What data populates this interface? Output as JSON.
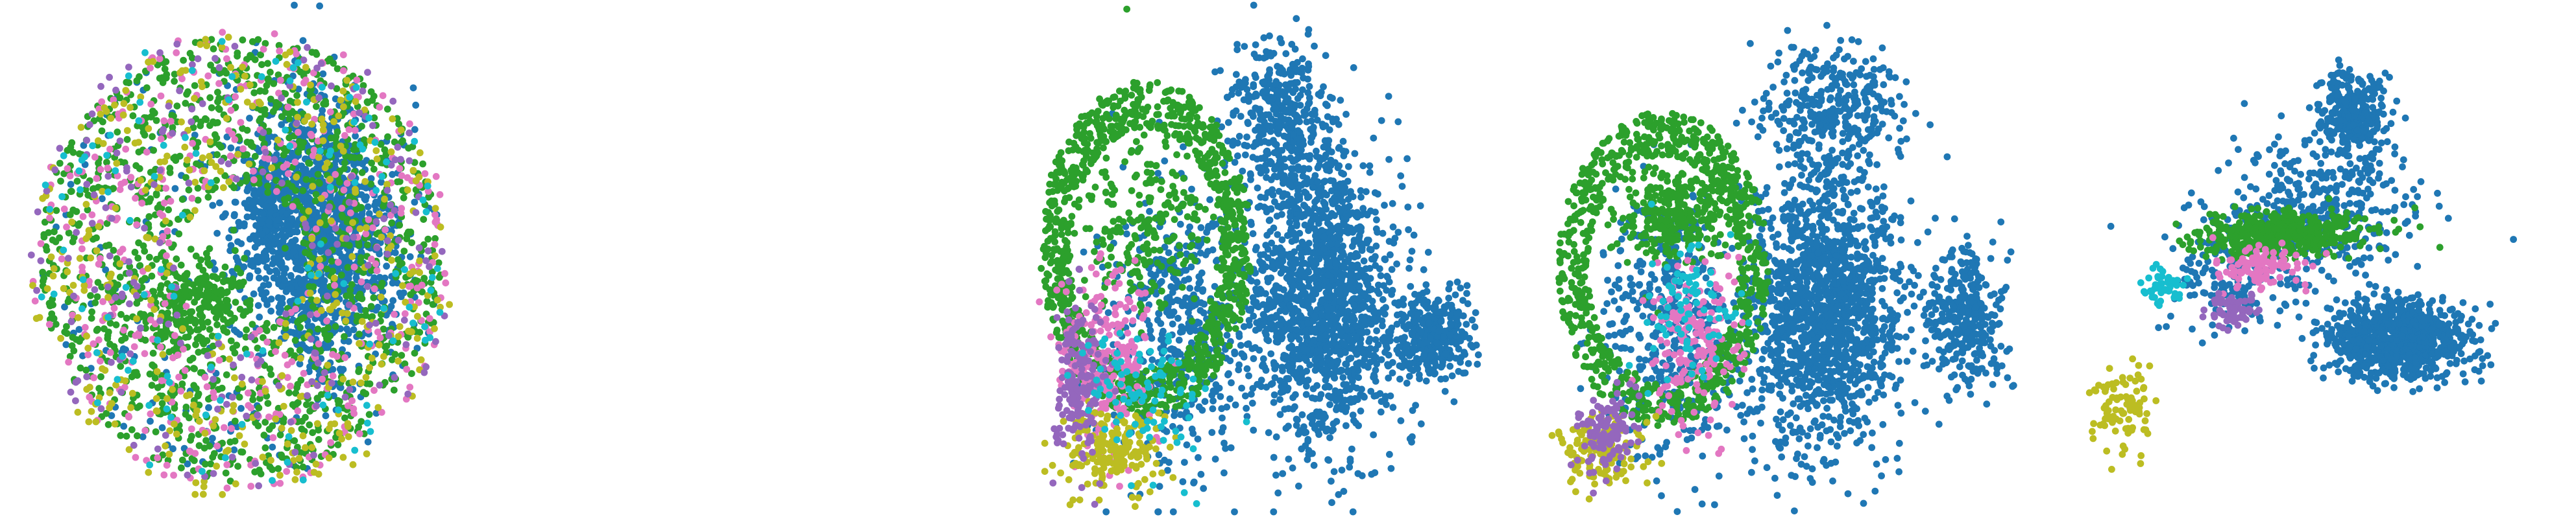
{
  "chart_data": [
    {
      "type": "scatter",
      "title": "",
      "xlabel": "",
      "ylabel": "",
      "axes": "hidden",
      "grid": false,
      "legend": "none",
      "series": [
        {
          "color": "#1f77b4",
          "clusters": [
            [
              0.62,
              0.45,
              0.14,
              0.22,
              1300,
              "gauss"
            ],
            [
              0.52,
              0.38,
              0.04,
              0.09,
              130,
              "gauss"
            ],
            [
              0.47,
              0.5,
              0.4,
              0.44,
              160,
              "ring"
            ]
          ]
        },
        {
          "color": "#2ca02c",
          "clusters": [
            [
              0.47,
              0.5,
              0.4,
              0.44,
              1300,
              "ring"
            ],
            [
              0.4,
              0.58,
              0.09,
              0.08,
              220,
              "gauss"
            ]
          ]
        },
        {
          "color": "#e377c2",
          "clusters": [
            [
              0.47,
              0.5,
              0.42,
              0.46,
              420,
              "ring"
            ]
          ]
        },
        {
          "color": "#bcbd22",
          "clusters": [
            [
              0.47,
              0.52,
              0.42,
              0.46,
              380,
              "ring"
            ]
          ]
        },
        {
          "color": "#9467bd",
          "clusters": [
            [
              0.47,
              0.5,
              0.42,
              0.46,
              200,
              "ring"
            ]
          ]
        },
        {
          "color": "#17becf",
          "clusters": [
            [
              0.47,
              0.5,
              0.42,
              0.46,
              120,
              "ring"
            ]
          ]
        }
      ]
    },
    {
      "type": "scatter",
      "title": "",
      "xlabel": "",
      "ylabel": "",
      "axes": "hidden",
      "grid": false,
      "legend": "none",
      "series": [
        {
          "color": "#1f77b4",
          "clusters": [
            [
              0.58,
              0.58,
              0.13,
              0.25,
              1500,
              "gauss"
            ],
            [
              0.5,
              0.22,
              0.09,
              0.14,
              380,
              "gauss"
            ],
            [
              0.8,
              0.66,
              0.07,
              0.08,
              320,
              "gauss"
            ],
            [
              0.31,
              0.62,
              0.14,
              0.26,
              500,
              "gauss"
            ]
          ]
        },
        {
          "color": "#2ca02c",
          "clusters": [
            [
              0.23,
              0.48,
              0.21,
              0.33,
              1000,
              "shell"
            ],
            [
              0.23,
              0.43,
              0.12,
              0.16,
              240,
              "gauss"
            ]
          ]
        },
        {
          "color": "#e377c2",
          "clusters": [
            [
              0.15,
              0.7,
              0.08,
              0.18,
              220,
              "gauss"
            ]
          ]
        },
        {
          "color": "#bcbd22",
          "clusters": [
            [
              0.16,
              0.88,
              0.09,
              0.07,
              190,
              "gauss"
            ]
          ]
        },
        {
          "color": "#9467bd",
          "clusters": [
            [
              0.1,
              0.74,
              0.05,
              0.15,
              170,
              "gauss"
            ]
          ]
        },
        {
          "color": "#17becf",
          "clusters": [
            [
              0.22,
              0.76,
              0.1,
              0.14,
              90,
              "gauss"
            ]
          ]
        }
      ]
    },
    {
      "type": "scatter",
      "title": "",
      "xlabel": "",
      "ylabel": "",
      "axes": "hidden",
      "grid": false,
      "legend": "none",
      "series": [
        {
          "color": "#1f77b4",
          "clusters": [
            [
              0.56,
              0.6,
              0.14,
              0.24,
              1500,
              "gauss"
            ],
            [
              0.58,
              0.2,
              0.13,
              0.11,
              330,
              "gauss"
            ],
            [
              0.84,
              0.62,
              0.07,
              0.12,
              320,
              "gauss"
            ],
            [
              0.25,
              0.64,
              0.12,
              0.25,
              420,
              "gauss"
            ]
          ]
        },
        {
          "color": "#2ca02c",
          "clusters": [
            [
              0.24,
              0.52,
              0.21,
              0.31,
              800,
              "shell"
            ],
            [
              0.26,
              0.42,
              0.1,
              0.09,
              300,
              "gauss"
            ]
          ]
        },
        {
          "color": "#e377c2",
          "clusters": [
            [
              0.3,
              0.67,
              0.08,
              0.14,
              180,
              "gauss"
            ]
          ]
        },
        {
          "color": "#bcbd22",
          "clusters": [
            [
              0.12,
              0.88,
              0.07,
              0.06,
              140,
              "gauss"
            ]
          ]
        },
        {
          "color": "#9467bd",
          "clusters": [
            [
              0.12,
              0.84,
              0.05,
              0.08,
              110,
              "gauss"
            ]
          ]
        },
        {
          "color": "#17becf",
          "clusters": [
            [
              0.3,
              0.58,
              0.08,
              0.12,
              80,
              "gauss"
            ]
          ]
        }
      ]
    },
    {
      "type": "scatter",
      "title": "",
      "xlabel": "",
      "ylabel": "",
      "axes": "hidden",
      "grid": false,
      "legend": "none",
      "series": [
        {
          "color": "#1f77b4",
          "clusters": [
            [
              0.67,
              0.66,
              0.12,
              0.07,
              900,
              "gauss"
            ],
            [
              0.58,
              0.22,
              0.06,
              0.08,
              300,
              "gauss"
            ],
            [
              0.52,
              0.4,
              0.18,
              0.14,
              350,
              "gauss"
            ],
            [
              0.34,
              0.53,
              0.13,
              0.1,
              180,
              "gauss"
            ]
          ]
        },
        {
          "color": "#2ca02c",
          "clusters": [
            [
              0.44,
              0.45,
              0.15,
              0.04,
              500,
              "gauss"
            ]
          ]
        },
        {
          "color": "#e377c2",
          "clusters": [
            [
              0.4,
              0.52,
              0.08,
              0.04,
              100,
              "gauss"
            ]
          ]
        },
        {
          "color": "#bcbd22",
          "clusters": [
            [
              0.12,
              0.8,
              0.05,
              0.07,
              90,
              "gauss"
            ]
          ]
        },
        {
          "color": "#9467bd",
          "clusters": [
            [
              0.34,
              0.6,
              0.05,
              0.03,
              60,
              "gauss"
            ]
          ]
        },
        {
          "color": "#17becf",
          "clusters": [
            [
              0.2,
              0.55,
              0.04,
              0.03,
              50,
              "gauss"
            ]
          ]
        }
      ]
    }
  ]
}
